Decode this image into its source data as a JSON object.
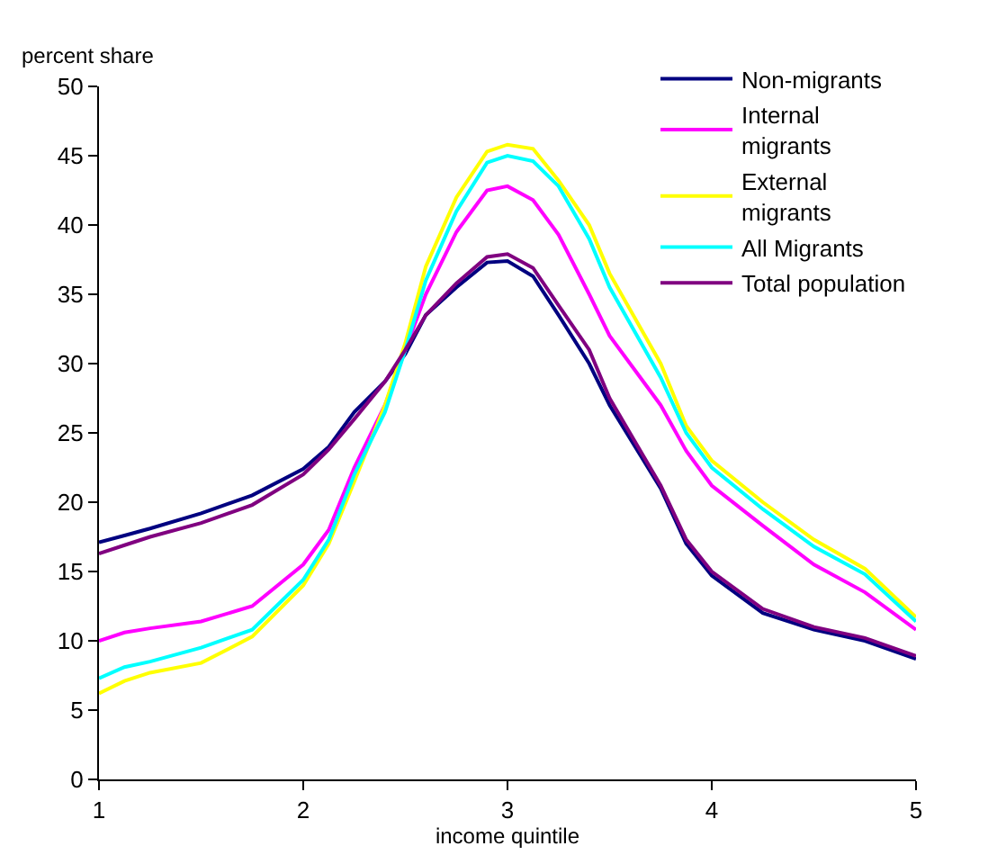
{
  "chart_data": {
    "type": "line",
    "xlabel": "income quintile",
    "ylabel": "percent share",
    "x": [
      1,
      1.125,
      1.25,
      1.5,
      1.75,
      2,
      2.125,
      2.25,
      2.4,
      2.5,
      2.6,
      2.75,
      2.9,
      3,
      3.125,
      3.25,
      3.4,
      3.5,
      3.75,
      3.875,
      4,
      4.25,
      4.5,
      4.75,
      5
    ],
    "series": [
      {
        "name": "Non-migrants",
        "color": "#000080",
        "values": [
          17.1,
          17.6,
          18.1,
          19.2,
          20.5,
          22.4,
          24,
          26.5,
          28.7,
          30.7,
          33.5,
          35.5,
          37.3,
          37.4,
          36.3,
          33.5,
          30,
          27,
          21,
          17,
          14.7,
          12,
          10.8,
          10,
          8.7
        ]
      },
      {
        "name": "Internal migrants",
        "color": "#ff00ff",
        "values": [
          10,
          10.6,
          10.9,
          11.4,
          12.5,
          15.5,
          18,
          22.5,
          27,
          31,
          35,
          39.5,
          42.5,
          42.8,
          41.8,
          39.3,
          35,
          32,
          27,
          23.7,
          21.2,
          18.3,
          15.5,
          13.5,
          10.8
        ]
      },
      {
        "name": "External migrants",
        "color": "#ffff00",
        "values": [
          6.2,
          7.1,
          7.7,
          8.4,
          10.3,
          14,
          17,
          21.5,
          27,
          31.5,
          37,
          42,
          45.3,
          45.8,
          45.5,
          43.2,
          40,
          36.5,
          30,
          25.5,
          23,
          20,
          17.3,
          15.2,
          11.7
        ]
      },
      {
        "name": "All Migrants",
        "color": "#00ffff",
        "values": [
          7.3,
          8.1,
          8.5,
          9.5,
          10.8,
          14.4,
          17.3,
          22,
          26.5,
          31,
          36,
          41,
          44.5,
          45,
          44.6,
          42.8,
          39,
          35.5,
          29,
          25,
          22.5,
          19.5,
          16.8,
          14.8,
          11.4
        ]
      },
      {
        "name": "Total population",
        "color": "#800080",
        "values": [
          16.3,
          16.9,
          17.5,
          18.5,
          19.8,
          22,
          23.8,
          26,
          28.7,
          31,
          33.5,
          35.8,
          37.7,
          37.9,
          36.9,
          34.2,
          31,
          27.5,
          21.2,
          17.3,
          15,
          12.3,
          11,
          10.2,
          8.9
        ]
      }
    ],
    "xlim": [
      1,
      5
    ],
    "xticks": [
      1,
      2,
      3,
      4,
      5
    ],
    "ylim": [
      0,
      50
    ],
    "yticks": [
      0,
      5,
      10,
      15,
      20,
      25,
      30,
      35,
      40,
      45,
      50
    ],
    "legend": "top right",
    "marker": "none",
    "line_style": "solid"
  }
}
